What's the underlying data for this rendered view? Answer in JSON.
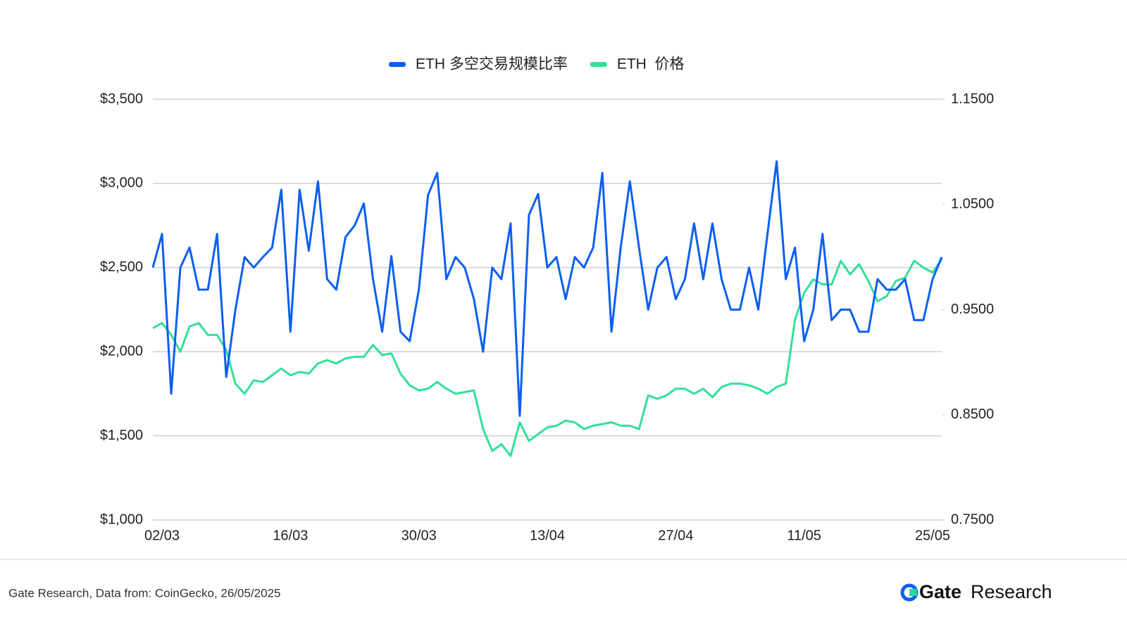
{
  "chart_data": {
    "type": "line",
    "categories": [
      null,
      "02/03",
      null,
      null,
      null,
      null,
      null,
      null,
      null,
      null,
      null,
      null,
      null,
      null,
      null,
      "16/03",
      null,
      null,
      null,
      null,
      null,
      null,
      null,
      null,
      null,
      null,
      null,
      null,
      null,
      "30/03",
      null,
      null,
      null,
      null,
      null,
      null,
      null,
      null,
      null,
      null,
      null,
      null,
      null,
      "13/04",
      null,
      null,
      null,
      null,
      null,
      null,
      null,
      null,
      null,
      null,
      null,
      null,
      null,
      "27/04",
      null,
      null,
      null,
      null,
      null,
      null,
      null,
      null,
      null,
      null,
      null,
      null,
      null,
      "11/05",
      null,
      null,
      null,
      null,
      null,
      null,
      null,
      null,
      null,
      null,
      null,
      null,
      null,
      "25/05",
      null
    ],
    "series": [
      {
        "name": "ETH 多空交易规模比率",
        "color": "#0b5ff0",
        "axis": "y2",
        "values": [
          0.99,
          1.022,
          0.87,
          0.99,
          1.009,
          0.969,
          0.969,
          1.022,
          0.886,
          0.95,
          1.0,
          0.99,
          1.0,
          1.009,
          1.064,
          0.929,
          1.064,
          1.006,
          1.072,
          0.979,
          0.969,
          1.019,
          1.03,
          1.051,
          0.979,
          0.929,
          1.001,
          0.929,
          0.92,
          0.969,
          1.059,
          1.08,
          0.979,
          1.0,
          0.99,
          0.96,
          0.91,
          0.99,
          0.979,
          1.032,
          0.849,
          1.04,
          1.06,
          0.99,
          1.0,
          0.96,
          1.0,
          0.99,
          1.009,
          1.08,
          0.929,
          1.009,
          1.072,
          1.009,
          0.95,
          0.99,
          1.0,
          0.96,
          0.979,
          1.032,
          0.979,
          1.032,
          0.979,
          0.95,
          0.95,
          0.99,
          0.95,
          1.022,
          1.091,
          0.979,
          1.009,
          0.92,
          0.95,
          1.022,
          0.94,
          0.95,
          0.95,
          0.929,
          0.929,
          0.979,
          0.969,
          0.969,
          0.979,
          0.94,
          0.94,
          0.979,
          1.0
        ]
      },
      {
        "name": "ETH  价格",
        "color": "#33e09a",
        "values": [
          2140,
          2170,
          2100,
          2000,
          2150,
          2170,
          2100,
          2100,
          2010,
          1810,
          1750,
          1830,
          1820,
          1860,
          1900,
          1860,
          1880,
          1870,
          1930,
          1950,
          1930,
          1960,
          1970,
          1970,
          2040,
          1980,
          1990,
          1870,
          1800,
          1770,
          1780,
          1820,
          1780,
          1750,
          1760,
          1770,
          1540,
          1410,
          1450,
          1380,
          1580,
          1470,
          1510,
          1550,
          1560,
          1590,
          1580,
          1540,
          1560,
          1570,
          1580,
          1560,
          1560,
          1540,
          1740,
          1720,
          1740,
          1780,
          1780,
          1750,
          1780,
          1730,
          1790,
          1810,
          1810,
          1800,
          1780,
          1750,
          1790,
          1810,
          2190,
          2350,
          2430,
          2400,
          2400,
          2540,
          2460,
          2520,
          2420,
          2300,
          2330,
          2420,
          2440,
          2540,
          2500,
          2470,
          2550
        ]
      }
    ],
    "ylim": [
      1000,
      3500
    ],
    "yticks": [
      {
        "value": 1000,
        "label": "$1,000"
      },
      {
        "value": 1500,
        "label": "$1,500"
      },
      {
        "value": 2000,
        "label": "$2,000"
      },
      {
        "value": 2500,
        "label": "$2,500"
      },
      {
        "value": 3000,
        "label": "$3,000"
      },
      {
        "value": 3500,
        "label": "$3,500"
      }
    ],
    "y2lim": [
      0.75,
      1.15
    ],
    "y2ticks": [
      {
        "value": 0.75,
        "label": "0.7500"
      },
      {
        "value": 0.85,
        "label": "0.8500"
      },
      {
        "value": 0.95,
        "label": "0.9500"
      },
      {
        "value": 1.05,
        "label": "1.0500"
      },
      {
        "value": 1.15,
        "label": "1.1500"
      }
    ],
    "grid": true,
    "legend": "top"
  },
  "footer": {
    "source": "Gate Research, Data from: CoinGecko, 26/05/2025",
    "brand_name": "Gate",
    "brand_suffix": "Research"
  }
}
